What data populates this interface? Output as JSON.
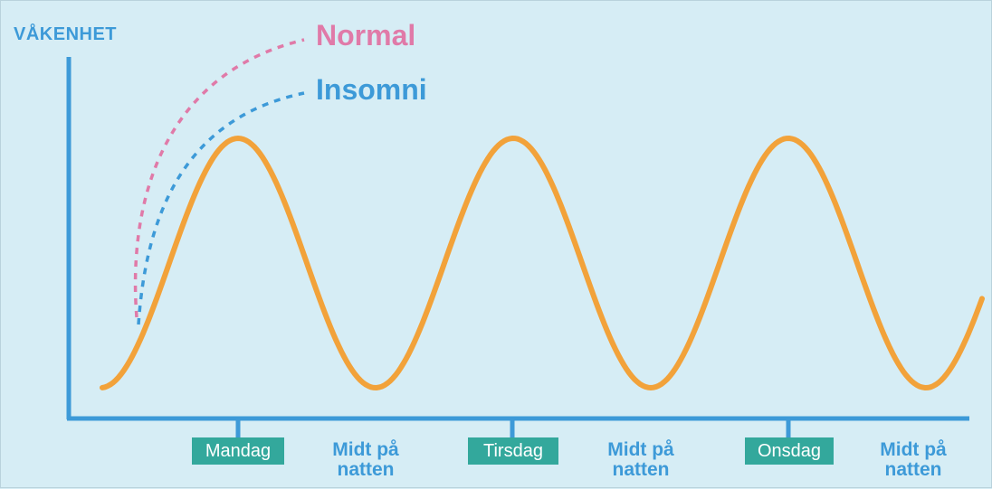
{
  "y_axis_label": "VÅKENHET",
  "legend": {
    "normal": "Normal",
    "insomni": "Insomni"
  },
  "x_labels": {
    "day1": "Mandag",
    "night1_line1": "Midt på",
    "night1_line2": "natten",
    "day2": "Tirsdag",
    "night2_line1": "Midt på",
    "night2_line2": "natten",
    "day3": "Onsdag",
    "night3_line1": "Midt på",
    "night3_line2": "natten"
  },
  "colors": {
    "background": "#d6edf5",
    "axis": "#3d9ad8",
    "curve": "#f2a23a",
    "normal": "#e07aa8",
    "insomni": "#3d9ad8",
    "day_badge": "#33a89c"
  }
}
